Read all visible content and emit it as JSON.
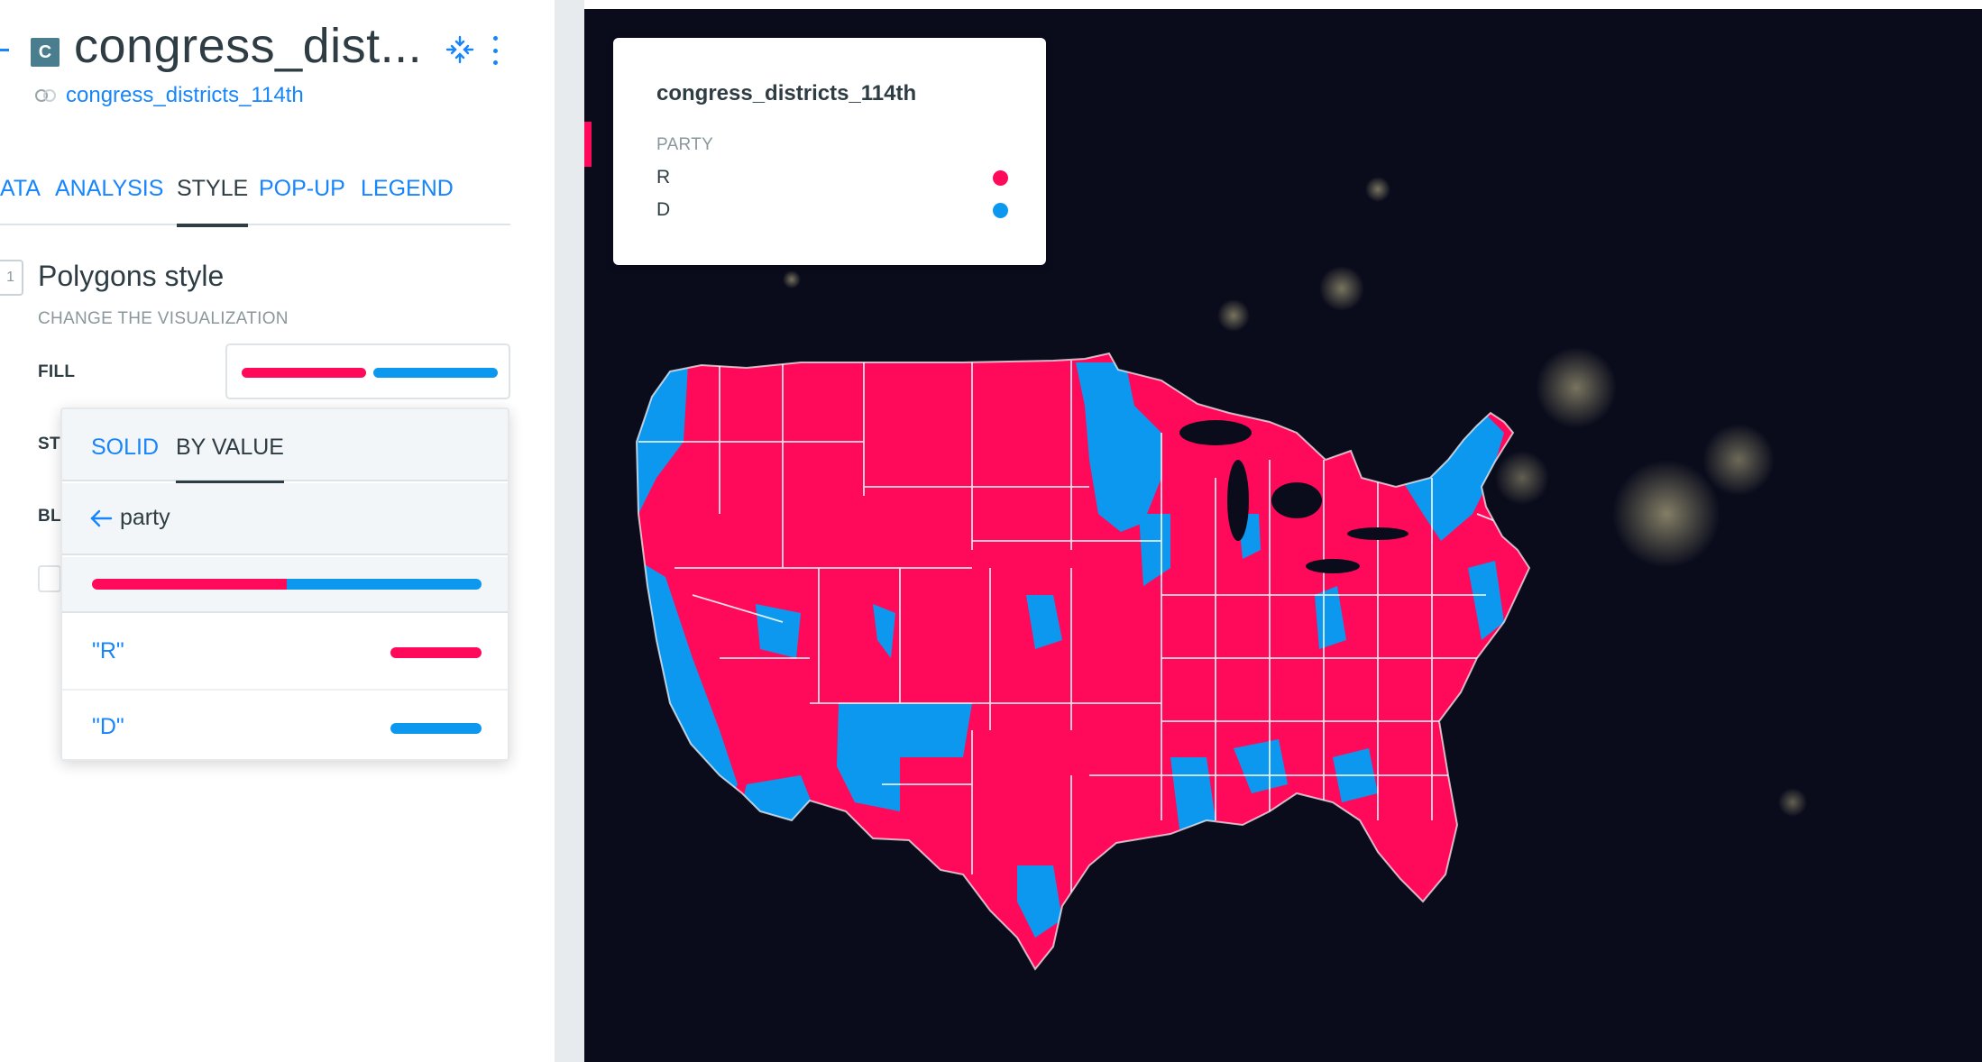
{
  "layer": {
    "letter": "C",
    "title": "congress_dist...",
    "source": "congress_districts_114th"
  },
  "tabs": [
    {
      "label": "ATA"
    },
    {
      "label": "ANALYSIS"
    },
    {
      "label": "STYLE"
    },
    {
      "label": "POP-UP"
    },
    {
      "label": "LEGEND"
    }
  ],
  "style_section": {
    "step": "1",
    "title": "Polygons style",
    "subtitle": "CHANGE THE VISUALIZATION",
    "fill_label": "FILL",
    "stroke_label_partial": "ST",
    "blending_label_partial": "BL"
  },
  "popup": {
    "tab_solid": "SOLID",
    "tab_by_value": "BY VALUE",
    "attribute": "party",
    "values": [
      {
        "label": "\"R\"",
        "color": "#ff0a5a"
      },
      {
        "label": "\"D\"",
        "color": "#0d98ef"
      }
    ]
  },
  "legend": {
    "title": "congress_districts_114th",
    "attribute": "PARTY",
    "items": [
      {
        "label": "R",
        "color": "#ff0a5a"
      },
      {
        "label": "D",
        "color": "#0d98ef"
      }
    ]
  },
  "colors": {
    "republican": "#ff0a5a",
    "democrat": "#0d98ef",
    "accent": "#1785fb",
    "map_background": "#0a0c1c"
  }
}
